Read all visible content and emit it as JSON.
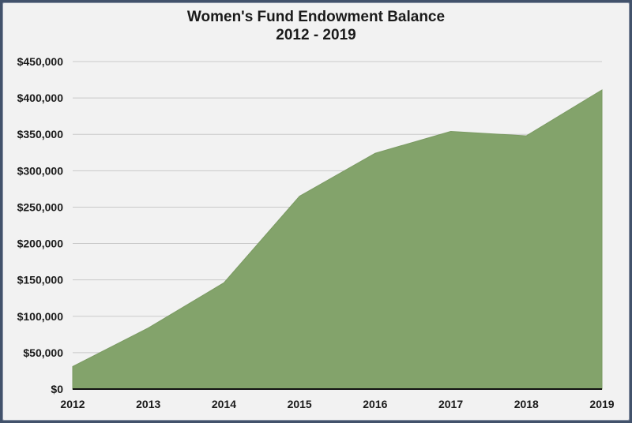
{
  "chart_data": {
    "type": "area",
    "title": "Women's Fund Endowment Balance",
    "subtitle": "2012 - 2019",
    "xlabel": "",
    "ylabel": "",
    "categories": [
      "2012",
      "2013",
      "2014",
      "2015",
      "2016",
      "2017",
      "2018",
      "2019"
    ],
    "values": [
      31000,
      84000,
      146000,
      265000,
      324000,
      354000,
      348000,
      411000
    ],
    "ylim": [
      0,
      450000
    ],
    "yticks": [
      0,
      50000,
      100000,
      150000,
      200000,
      250000,
      300000,
      350000,
      400000,
      450000
    ],
    "ytick_labels": [
      "$0",
      "$50,000",
      "$100,000",
      "$150,000",
      "$200,000",
      "$250,000",
      "$300,000",
      "$350,000",
      "$400,000",
      "$450,000"
    ],
    "grid": true,
    "legend": "none",
    "colors": {
      "area": "#83a36b",
      "area_edge": "#7a9a62",
      "grid": "#c9c9c9",
      "axis": "#111111"
    }
  }
}
